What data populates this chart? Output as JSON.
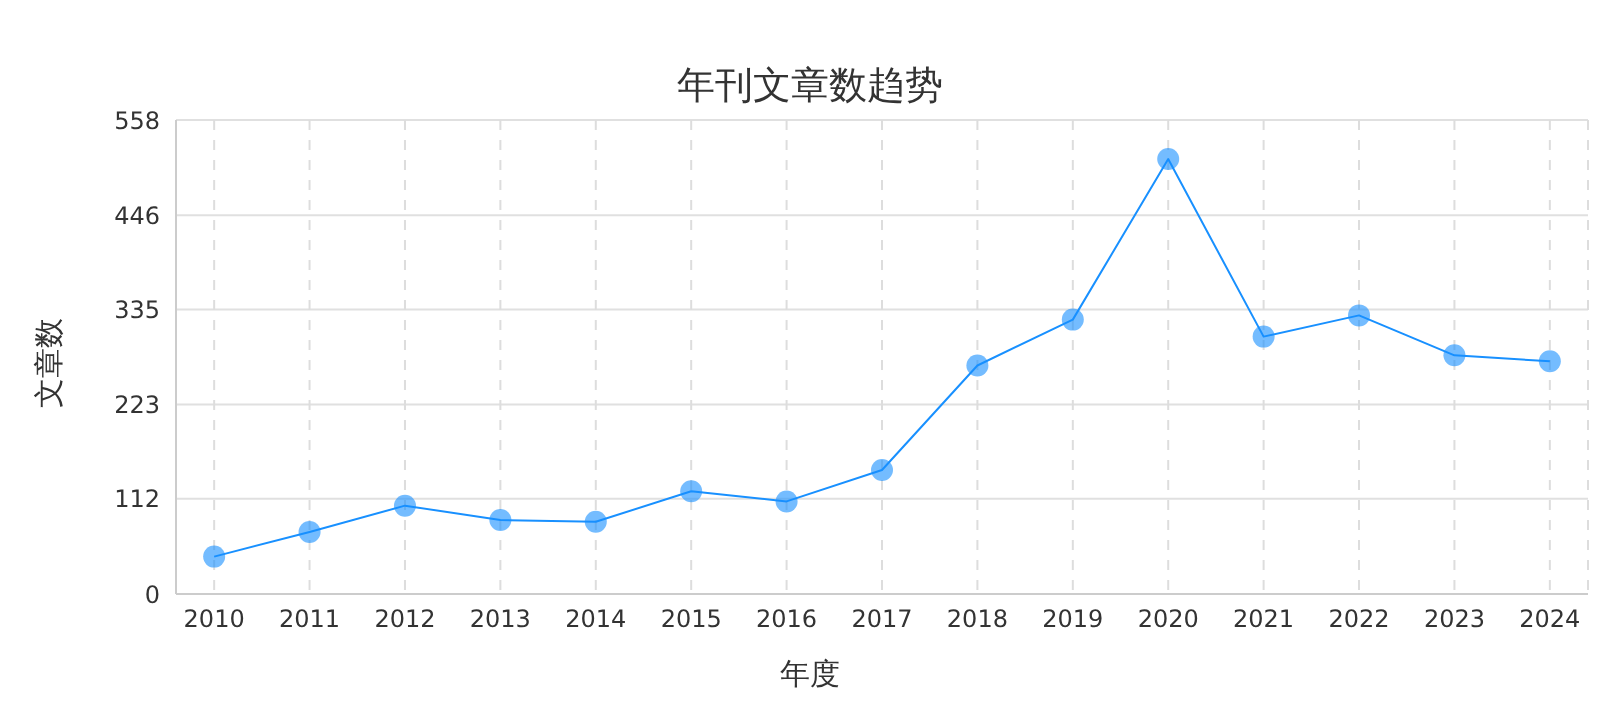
{
  "chart_data": {
    "type": "line",
    "title": "年刊文章数趋势",
    "xlabel": "年度",
    "ylabel": "文章数",
    "categories": [
      "2010",
      "2011",
      "2012",
      "2013",
      "2014",
      "2015",
      "2016",
      "2017",
      "2018",
      "2019",
      "2020",
      "2021",
      "2022",
      "2023",
      "2024"
    ],
    "series": [
      {
        "color": "#1890ff",
        "values": [
          44,
          73,
          104,
          87,
          85,
          121,
          109,
          146,
          269,
          323,
          512,
          303,
          328,
          281,
          274
        ]
      }
    ],
    "ylim": [
      0,
      558
    ],
    "yticks": [
      0,
      112,
      223,
      335,
      446,
      558
    ],
    "grid": true,
    "marker": "circle",
    "line_style": "solid"
  }
}
